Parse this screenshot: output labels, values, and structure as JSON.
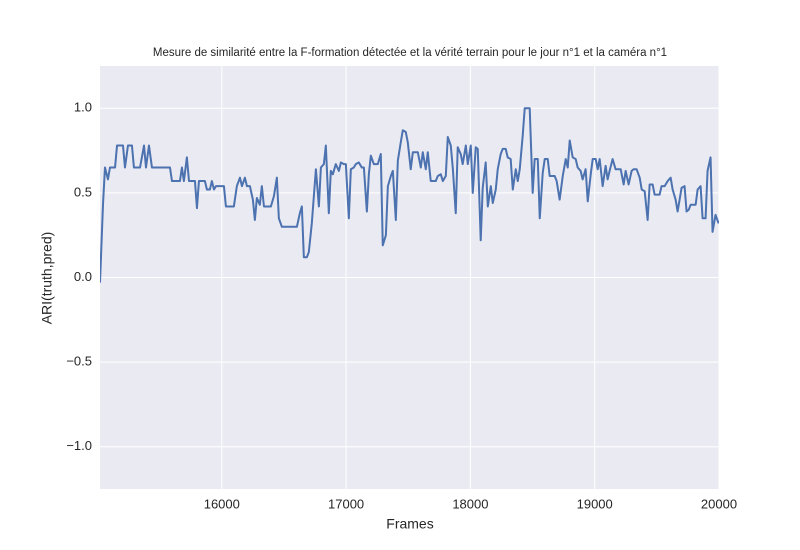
{
  "chart_data": {
    "type": "line",
    "title": "Mesure de similarité entre la F-formation détectée et la vérité terrain pour le jour n°1 et la caméra n°1",
    "x_label": "Frames",
    "y_label": "ARI(truth,pred)",
    "xlim": [
      15020,
      20000
    ],
    "xticks": [
      16000,
      17000,
      18000,
      19000,
      20000
    ],
    "ylim": [
      -1.25,
      1.25
    ],
    "yticks": [
      {
        "value": -1,
        "label": "−1.0"
      },
      {
        "value": -0.5,
        "label": "−0.5"
      },
      {
        "value": 0,
        "label": "0.0"
      },
      0.5,
      {
        "value": 1,
        "label": "1.0"
      }
    ],
    "grid": true,
    "color": "#4c72b0",
    "x": [
      15020,
      15044,
      15060,
      15084,
      15100,
      15141,
      15157,
      15205,
      15221,
      15245,
      15277,
      15293,
      15342,
      15374,
      15390,
      15414,
      15438,
      15543,
      15583,
      15599,
      15663,
      15679,
      15695,
      15719,
      15736,
      15784,
      15800,
      15816,
      15864,
      15880,
      15904,
      15920,
      15937,
      15953,
      16017,
      16033,
      16097,
      16121,
      16146,
      16162,
      16186,
      16202,
      16226,
      16250,
      16266,
      16282,
      16306,
      16322,
      16339,
      16395,
      16419,
      16443,
      16459,
      16483,
      16604,
      16628,
      16644,
      16660,
      16684,
      16700,
      16724,
      16757,
      16781,
      16797,
      16821,
      16837,
      16861,
      16877,
      16893,
      16917,
      16942,
      16958,
      16982,
      16998,
      17022,
      17038,
      17062,
      17078,
      17102,
      17126,
      17143,
      17167,
      17183,
      17199,
      17223,
      17255,
      17279,
      17295,
      17320,
      17336,
      17360,
      17376,
      17400,
      17416,
      17440,
      17456,
      17480,
      17496,
      17520,
      17537,
      17577,
      17601,
      17617,
      17641,
      17657,
      17681,
      17721,
      17738,
      17762,
      17778,
      17802,
      17818,
      17842,
      17859,
      17882,
      17898,
      17922,
      17938,
      17963,
      17979,
      18003,
      18019,
      18043,
      18059,
      18083,
      18099,
      18123,
      18140,
      18164,
      18180,
      18204,
      18220,
      18244,
      18260,
      18284,
      18300,
      18324,
      18341,
      18365,
      18381,
      18397,
      18421,
      18437,
      18477,
      18501,
      18517,
      18542,
      18558,
      18582,
      18598,
      18622,
      18638,
      18678,
      18694,
      18718,
      18743,
      18767,
      18783,
      18799,
      18823,
      18847,
      18863,
      18887,
      18903,
      18927,
      18944,
      18968,
      18984,
      19008,
      19024,
      19040,
      19064,
      19088,
      19104,
      19120,
      19144,
      19168,
      19209,
      19233,
      19249,
      19273,
      19297,
      19313,
      19337,
      19362,
      19378,
      19402,
      19426,
      19442,
      19466,
      19482,
      19522,
      19538,
      19563,
      19587,
      19611,
      19627,
      19651,
      19667,
      19683,
      19699,
      19723,
      19739,
      19756,
      19772,
      19812,
      19828,
      19852,
      19868,
      19892,
      19908,
      19932,
      19948,
      19972,
      19997
    ],
    "values": [
      -0.03,
      0.43,
      0.65,
      0.58,
      0.65,
      0.65,
      0.78,
      0.78,
      0.65,
      0.78,
      0.78,
      0.65,
      0.65,
      0.78,
      0.65,
      0.78,
      0.65,
      0.65,
      0.65,
      0.57,
      0.57,
      0.65,
      0.57,
      0.71,
      0.57,
      0.57,
      0.41,
      0.57,
      0.57,
      0.52,
      0.52,
      0.57,
      0.52,
      0.54,
      0.54,
      0.42,
      0.42,
      0.54,
      0.59,
      0.54,
      0.59,
      0.54,
      0.54,
      0.46,
      0.34,
      0.47,
      0.43,
      0.54,
      0.42,
      0.42,
      0.48,
      0.59,
      0.35,
      0.3,
      0.3,
      0.38,
      0.42,
      0.12,
      0.12,
      0.15,
      0.32,
      0.64,
      0.42,
      0.65,
      0.67,
      0.78,
      0.38,
      0.63,
      0.61,
      0.67,
      0.63,
      0.68,
      0.67,
      0.67,
      0.35,
      0.64,
      0.65,
      0.67,
      0.68,
      0.65,
      0.65,
      0.39,
      0.61,
      0.72,
      0.67,
      0.67,
      0.73,
      0.19,
      0.25,
      0.54,
      0.6,
      0.63,
      0.34,
      0.69,
      0.8,
      0.87,
      0.86,
      0.8,
      0.64,
      0.74,
      0.74,
      0.65,
      0.74,
      0.64,
      0.74,
      0.57,
      0.57,
      0.6,
      0.61,
      0.57,
      0.6,
      0.83,
      0.78,
      0.64,
      0.38,
      0.77,
      0.73,
      0.67,
      0.78,
      0.67,
      0.78,
      0.5,
      0.77,
      0.76,
      0.22,
      0.53,
      0.68,
      0.42,
      0.54,
      0.44,
      0.52,
      0.64,
      0.73,
      0.76,
      0.76,
      0.71,
      0.7,
      0.52,
      0.64,
      0.57,
      0.64,
      0.84,
      1.0,
      1.0,
      0.5,
      0.7,
      0.7,
      0.35,
      0.62,
      0.7,
      0.7,
      0.6,
      0.6,
      0.57,
      0.46,
      0.6,
      0.7,
      0.65,
      0.81,
      0.71,
      0.7,
      0.65,
      0.63,
      0.58,
      0.64,
      0.45,
      0.61,
      0.7,
      0.7,
      0.64,
      0.7,
      0.54,
      0.66,
      0.58,
      0.63,
      0.7,
      0.64,
      0.64,
      0.55,
      0.63,
      0.55,
      0.63,
      0.64,
      0.64,
      0.59,
      0.52,
      0.51,
      0.34,
      0.55,
      0.55,
      0.49,
      0.49,
      0.54,
      0.54,
      0.57,
      0.59,
      0.52,
      0.46,
      0.39,
      0.46,
      0.53,
      0.54,
      0.39,
      0.4,
      0.43,
      0.43,
      0.52,
      0.54,
      0.35,
      0.35,
      0.63,
      0.71,
      0.27,
      0.37,
      0.32
    ]
  }
}
